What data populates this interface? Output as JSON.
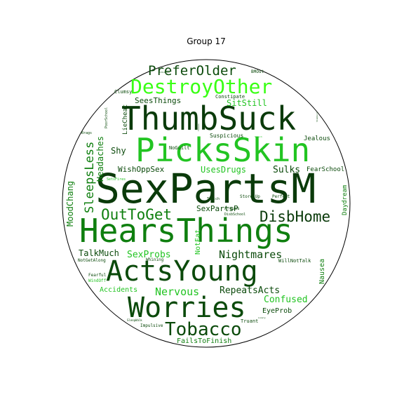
{
  "title": "Group 17",
  "colors": {
    "dark": "#0b4a0b",
    "deep": "#0a3a0a",
    "mid": "#0f7f0f",
    "bright": "#22c422",
    "neon": "#39ff14",
    "border": "#000000",
    "background": "#ffffff"
  },
  "words": [
    {
      "text": "SexPartsM",
      "color": "deep"
    },
    {
      "text": "HearsThings",
      "color": "mid"
    },
    {
      "text": "ThumbSuck",
      "color": "deep"
    },
    {
      "text": "ActsYoung",
      "color": "dark"
    },
    {
      "text": "PicksSkin",
      "color": "bright"
    },
    {
      "text": "Worries",
      "color": "dark"
    },
    {
      "text": "DestroyOther",
      "color": "neon"
    },
    {
      "text": "Tobacco",
      "color": "dark"
    },
    {
      "text": "DisbHome",
      "color": "deep"
    },
    {
      "text": "OutToGet",
      "color": "mid"
    },
    {
      "text": "PreferOlder",
      "color": "dark"
    },
    {
      "text": "SleepsLess",
      "color": "mid"
    },
    {
      "text": "Nightmares",
      "color": "dark"
    },
    {
      "text": "Nervous",
      "color": "bright"
    },
    {
      "text": "RepeatsActs",
      "color": "dark"
    },
    {
      "text": "Confused",
      "color": "bright"
    },
    {
      "text": "MoodChang",
      "color": "mid"
    },
    {
      "text": "Headaches",
      "color": "mid"
    },
    {
      "text": "SexProbs",
      "color": "bright"
    },
    {
      "text": "TalkMuch",
      "color": "dark"
    },
    {
      "text": "Sulks",
      "color": "dark"
    },
    {
      "text": "SitStill",
      "color": "bright"
    },
    {
      "text": "WishOppSex",
      "color": "dark"
    },
    {
      "text": "UsesDrugs",
      "color": "bright"
    },
    {
      "text": "SexPartsP",
      "color": "dark"
    },
    {
      "text": "Shy",
      "color": "dark"
    },
    {
      "text": "SeesThings",
      "color": "dark"
    },
    {
      "text": "Accidents",
      "color": "bright"
    },
    {
      "text": "EyeProb",
      "color": "dark"
    },
    {
      "text": "FailsToFinish",
      "color": "mid"
    },
    {
      "text": "Nausea",
      "color": "mid"
    },
    {
      "text": "NotEat",
      "color": "bright"
    },
    {
      "text": "FearSchool",
      "color": "dark"
    },
    {
      "text": "LieCheat",
      "color": "dark"
    },
    {
      "text": "Jealous",
      "color": "dark"
    },
    {
      "text": "Suspicious",
      "color": "dark"
    },
    {
      "text": "NoGuilt",
      "color": "dark"
    },
    {
      "text": "Daydream",
      "color": "mid"
    },
    {
      "text": "Constipate",
      "color": "dark"
    },
    {
      "text": "Clumsy",
      "color": "dark"
    },
    {
      "text": "BMOut",
      "color": "dark"
    },
    {
      "text": "Truant",
      "color": "dark"
    },
    {
      "text": "Impulsive",
      "color": "dark"
    },
    {
      "text": "WillNotTalk",
      "color": "dark"
    },
    {
      "text": "NotGetAlong",
      "color": "dark"
    },
    {
      "text": "Whining",
      "color": "dark"
    },
    {
      "text": "Fearful",
      "color": "dark"
    },
    {
      "text": "WindOff",
      "color": "bright"
    },
    {
      "text": "Perfect",
      "color": "dark"
    },
    {
      "text": "StoresUp",
      "color": "dark"
    },
    {
      "text": "Argues",
      "color": "dark"
    },
    {
      "text": "DisbSchool",
      "color": "dark"
    },
    {
      "text": "Twitch",
      "color": "dark"
    },
    {
      "text": "PoorSchool",
      "color": "dark"
    },
    {
      "text": "Brags",
      "color": "dark"
    },
    {
      "text": "SetsFires",
      "color": "bright"
    },
    {
      "text": "SleepWalk",
      "color": "dark"
    },
    {
      "text": "Teases",
      "color": "dark"
    },
    {
      "text": "Speech",
      "color": "bright"
    },
    {
      "text": "Lonely",
      "color": "dark"
    },
    {
      "text": "Withdrawn",
      "color": "dark"
    },
    {
      "text": "Stubborn",
      "color": "dark"
    }
  ]
}
